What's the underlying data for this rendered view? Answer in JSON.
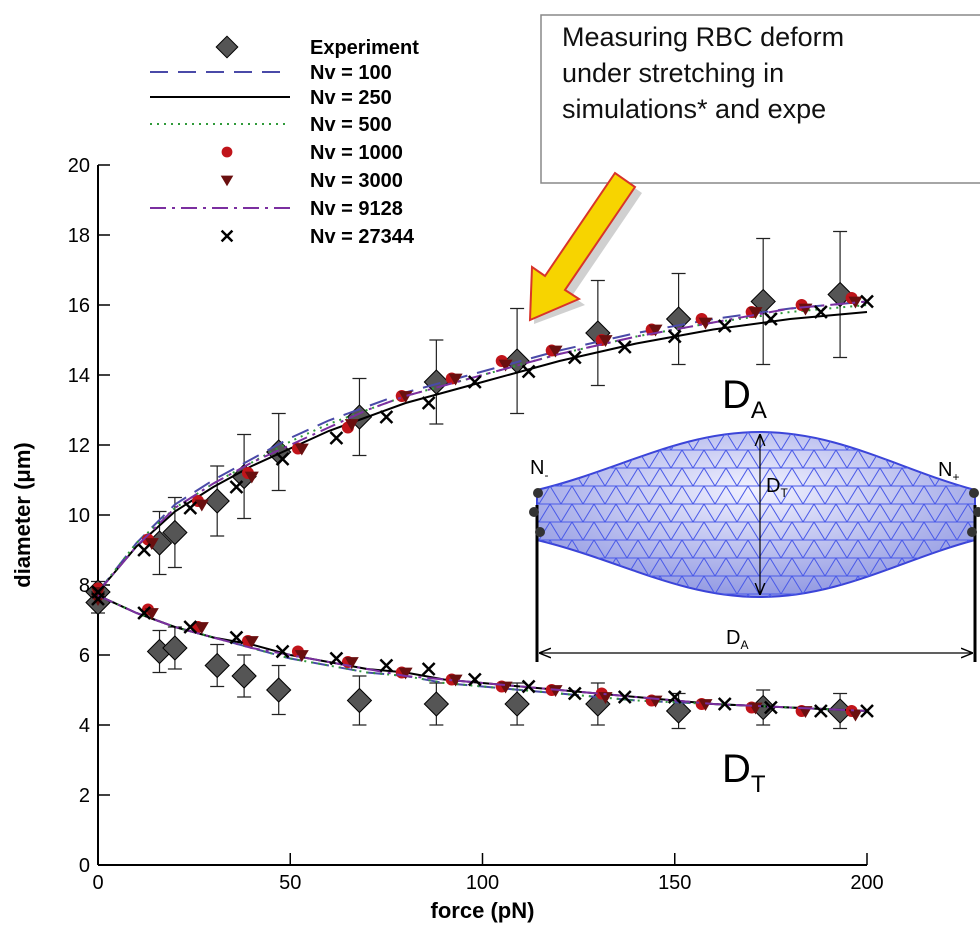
{
  "chart_data": {
    "type": "scatter-line",
    "x_label": "force (pN)",
    "y_label": "diameter (μm)",
    "xlim": [
      0,
      200
    ],
    "ylim": [
      0,
      20
    ],
    "xticks": [
      0,
      50,
      100,
      150,
      200
    ],
    "yticks": [
      0,
      2,
      4,
      6,
      8,
      10,
      12,
      14,
      16,
      18,
      20
    ],
    "series": [
      {
        "name": "Experiment",
        "color": "#555555",
        "marker": "diamond",
        "x": [
          0,
          16,
          20,
          31,
          38,
          47,
          68,
          88,
          109,
          130,
          151,
          173,
          193
        ],
        "values": [
          7.8,
          9.2,
          9.5,
          10.4,
          11.1,
          11.8,
          12.8,
          13.8,
          14.4,
          15.2,
          15.6,
          16.1,
          16.3
        ],
        "errors": [
          0.3,
          0.9,
          1.0,
          1.0,
          1.2,
          1.1,
          1.1,
          1.2,
          1.5,
          1.5,
          1.3,
          1.8,
          1.8
        ],
        "lower_values": [
          7.5,
          6.1,
          6.2,
          5.7,
          5.4,
          5.0,
          4.7,
          4.6,
          4.6,
          4.6,
          4.4,
          4.5,
          4.4
        ],
        "lower_errors": [
          0.3,
          0.6,
          0.6,
          0.6,
          0.6,
          0.7,
          0.7,
          0.6,
          0.6,
          0.6,
          0.5,
          0.5,
          0.5
        ]
      },
      {
        "name": "Nv = 100",
        "color": "#4a4aa8",
        "line_style": "dashed",
        "x": [
          0,
          10,
          20,
          30,
          40,
          50,
          60,
          70,
          80,
          90,
          100,
          120,
          140,
          160,
          180,
          200
        ],
        "values": [
          7.8,
          9.2,
          10.3,
          11.0,
          11.6,
          12.2,
          12.7,
          13.1,
          13.5,
          13.8,
          14.1,
          14.7,
          15.2,
          15.6,
          15.9,
          16.1
        ],
        "lower_values": [
          7.7,
          7.2,
          6.8,
          6.5,
          6.2,
          5.9,
          5.7,
          5.5,
          5.4,
          5.2,
          5.1,
          4.9,
          4.7,
          4.6,
          4.5,
          4.4
        ]
      },
      {
        "name": "Nv = 250",
        "color": "#000000",
        "line_style": "solid",
        "x": [
          0,
          10,
          20,
          30,
          40,
          50,
          60,
          70,
          80,
          90,
          100,
          120,
          140,
          160,
          180,
          200
        ],
        "values": [
          7.8,
          9.1,
          10.1,
          10.8,
          11.4,
          11.9,
          12.4,
          12.8,
          13.2,
          13.5,
          13.8,
          14.4,
          14.9,
          15.3,
          15.6,
          15.8
        ],
        "lower_values": [
          7.7,
          7.2,
          6.8,
          6.5,
          6.3,
          6.0,
          5.8,
          5.6,
          5.5,
          5.3,
          5.2,
          5.0,
          4.8,
          4.6,
          4.5,
          4.4
        ]
      },
      {
        "name": "Nv = 500",
        "color": "#2f9a3a",
        "line_style": "dotted",
        "x": [
          0,
          10,
          20,
          30,
          40,
          50,
          60,
          70,
          80,
          90,
          100,
          120,
          140,
          160,
          180,
          200
        ],
        "values": [
          7.8,
          9.2,
          10.2,
          10.9,
          11.5,
          12.1,
          12.6,
          13.0,
          13.4,
          13.7,
          14.0,
          14.6,
          15.1,
          15.5,
          15.8,
          16.0
        ],
        "lower_values": [
          7.7,
          7.2,
          6.8,
          6.5,
          6.2,
          5.9,
          5.7,
          5.5,
          5.4,
          5.2,
          5.1,
          4.9,
          4.7,
          4.6,
          4.5,
          4.4
        ]
      },
      {
        "name": "Nv = 1000",
        "color": "#c0141a",
        "marker": "circle",
        "x": [
          0,
          13,
          26,
          39,
          52,
          65,
          79,
          92,
          105,
          118,
          131,
          144,
          157,
          170,
          183,
          196
        ],
        "values": [
          7.9,
          9.3,
          10.4,
          11.2,
          11.9,
          12.5,
          13.4,
          13.9,
          14.4,
          14.7,
          15.0,
          15.3,
          15.6,
          15.8,
          16.0,
          16.2
        ],
        "lower_values": [
          7.7,
          7.3,
          6.8,
          6.4,
          6.1,
          5.8,
          5.5,
          5.3,
          5.1,
          5.0,
          4.9,
          4.7,
          4.6,
          4.5,
          4.4,
          4.4
        ]
      },
      {
        "name": "Nv = 3000",
        "color": "#6a0f0f",
        "marker": "triangle",
        "x": [
          0,
          14,
          27,
          40,
          53,
          66,
          80,
          93,
          106,
          119,
          132,
          145,
          158,
          171,
          184,
          197
        ],
        "values": [
          7.8,
          9.2,
          10.3,
          11.1,
          11.9,
          12.6,
          13.4,
          13.9,
          14.3,
          14.7,
          15.0,
          15.3,
          15.5,
          15.8,
          15.9,
          16.1
        ],
        "lower_values": [
          7.6,
          7.2,
          6.8,
          6.4,
          6.0,
          5.8,
          5.5,
          5.3,
          5.1,
          5.0,
          4.8,
          4.7,
          4.6,
          4.5,
          4.4,
          4.3
        ]
      },
      {
        "name": "Nv = 9128",
        "color": "#7b2fa0",
        "line_style": "dashdot",
        "x": [
          0,
          10,
          20,
          30,
          40,
          50,
          60,
          70,
          80,
          90,
          100,
          120,
          140,
          160,
          180,
          200
        ],
        "values": [
          7.8,
          9.1,
          10.2,
          10.9,
          11.5,
          12.0,
          12.5,
          13.0,
          13.4,
          13.7,
          14.0,
          14.6,
          15.1,
          15.5,
          15.9,
          16.1
        ],
        "lower_values": [
          7.7,
          7.2,
          6.8,
          6.5,
          6.2,
          6.0,
          5.8,
          5.6,
          5.4,
          5.3,
          5.2,
          5.0,
          4.8,
          4.6,
          4.5,
          4.4
        ]
      },
      {
        "name": "Nv = 27344",
        "color": "#000000",
        "marker": "x",
        "x": [
          0,
          12,
          24,
          36,
          48,
          62,
          75,
          86,
          98,
          112,
          124,
          137,
          150,
          163,
          175,
          188,
          200
        ],
        "values": [
          7.8,
          9.0,
          10.2,
          10.8,
          11.6,
          12.2,
          12.8,
          13.2,
          13.8,
          14.1,
          14.5,
          14.8,
          15.1,
          15.4,
          15.6,
          15.8,
          16.1
        ],
        "lower_values": [
          7.6,
          7.2,
          6.8,
          6.5,
          6.1,
          5.9,
          5.7,
          5.6,
          5.3,
          5.1,
          4.9,
          4.8,
          4.8,
          4.6,
          4.5,
          4.4,
          4.4
        ]
      }
    ],
    "annotation": [
      "Measuring RBC deform",
      "under stretching in",
      "simulations* and expe"
    ],
    "curve_labels": [
      {
        "main": "D",
        "sub": "A"
      },
      {
        "main": "D",
        "sub": "T"
      }
    ],
    "inset_labels": [
      {
        "main": "N",
        "sub": "-"
      },
      {
        "main": "N",
        "sub": "+"
      },
      {
        "main": "D",
        "sub": "T"
      },
      {
        "main": "D",
        "sub": "A"
      }
    ]
  }
}
